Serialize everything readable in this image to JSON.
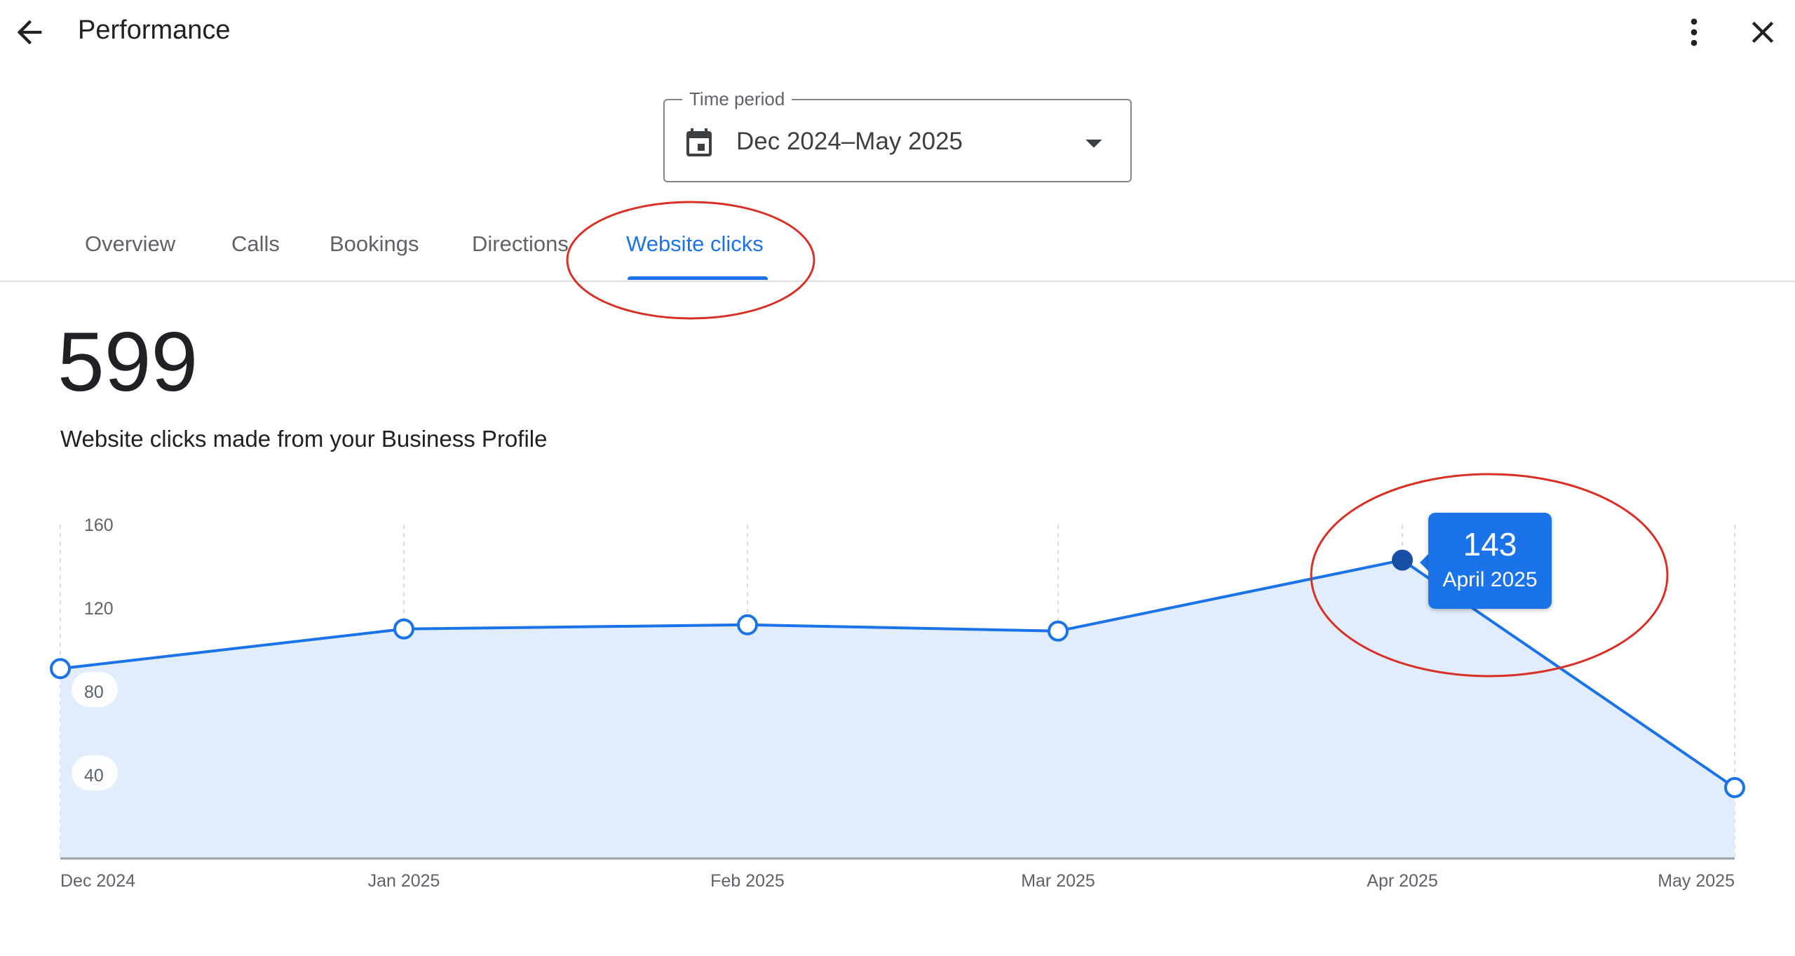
{
  "header": {
    "title": "Performance",
    "back_icon": "arrow-left-icon",
    "more_icon": "more-vert-icon",
    "close_icon": "close-icon"
  },
  "time_period": {
    "legend": "Time period",
    "value": "Dec 2024–May 2025",
    "icon": "calendar-icon"
  },
  "tabs": [
    {
      "label": "Overview",
      "active": false
    },
    {
      "label": "Calls",
      "active": false
    },
    {
      "label": "Bookings",
      "active": false
    },
    {
      "label": "Directions",
      "active": false
    },
    {
      "label": "Website clicks",
      "active": true
    }
  ],
  "metric": {
    "value": "599",
    "caption": "Website clicks made from your Business Profile"
  },
  "colors": {
    "accent": "#1a73e8",
    "area_fill": "#e1ecfc",
    "annotation": "#d93025"
  },
  "chart_data": {
    "type": "area",
    "x": [
      "Dec 2024",
      "Jan 2025",
      "Feb 2025",
      "Mar 2025",
      "Apr 2025",
      "May 2025"
    ],
    "series": [
      {
        "values": [
          91,
          110,
          112,
          109,
          143,
          34
        ]
      }
    ],
    "ylim": [
      0,
      160
    ],
    "yticks": [
      40,
      80,
      120,
      160
    ],
    "grid": "vertical-dashed",
    "highlighted_index": 4,
    "tooltip": {
      "value": "143",
      "label": "April 2025"
    }
  }
}
